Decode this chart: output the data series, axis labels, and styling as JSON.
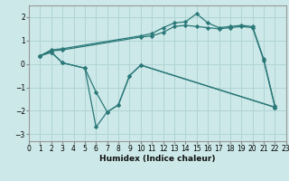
{
  "xlabel": "Humidex (Indice chaleur)",
  "bg_color": "#cce8e8",
  "grid_color": "#b0d4d4",
  "line_color": "#2a7878",
  "xlim": [
    0,
    23
  ],
  "ylim": [
    -3.3,
    2.5
  ],
  "xticks": [
    0,
    1,
    2,
    3,
    4,
    5,
    6,
    7,
    8,
    9,
    10,
    11,
    12,
    13,
    14,
    15,
    16,
    17,
    18,
    19,
    20,
    21,
    22,
    23
  ],
  "yticks": [
    -3,
    -2,
    -1,
    0,
    1,
    2
  ],
  "lines": [
    {
      "x": [
        1,
        2,
        3,
        10,
        11,
        12,
        13,
        14,
        15,
        16,
        17,
        18,
        19,
        20,
        21,
        22
      ],
      "y": [
        0.35,
        0.6,
        0.65,
        1.2,
        1.3,
        1.55,
        1.75,
        1.8,
        2.15,
        1.75,
        1.55,
        1.6,
        1.65,
        1.6,
        0.2,
        -1.8
      ]
    },
    {
      "x": [
        1,
        2,
        3,
        10,
        11,
        12,
        13,
        14,
        15,
        16,
        17,
        18,
        19,
        20,
        21,
        22
      ],
      "y": [
        0.35,
        0.55,
        0.6,
        1.15,
        1.2,
        1.35,
        1.6,
        1.65,
        1.6,
        1.55,
        1.5,
        1.55,
        1.6,
        1.55,
        0.15,
        -1.85
      ]
    },
    {
      "x": [
        1,
        2,
        3,
        5,
        6,
        7,
        8,
        9,
        10,
        22
      ],
      "y": [
        0.35,
        0.5,
        0.05,
        -0.18,
        -1.2,
        -2.05,
        -1.75,
        -0.5,
        -0.05,
        -1.85
      ]
    },
    {
      "x": [
        1,
        2,
        3,
        5,
        6,
        7,
        8,
        9,
        10,
        22
      ],
      "y": [
        0.35,
        0.5,
        0.05,
        -0.18,
        -2.7,
        -2.05,
        -1.75,
        -0.5,
        -0.05,
        -1.85
      ]
    }
  ]
}
